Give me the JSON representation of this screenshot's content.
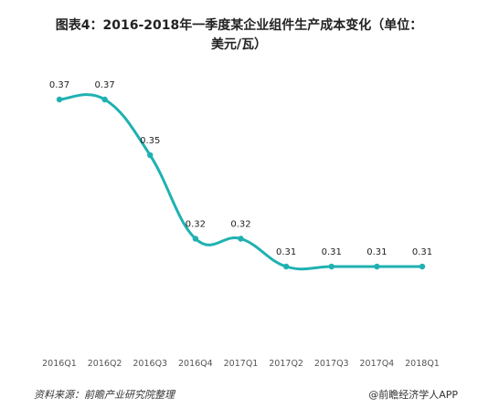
{
  "chart_data": {
    "type": "line",
    "title_line1": "图表4：2016-2018年一季度某企业组件生产成本变化（单位：",
    "title_line2": "美元/瓦）",
    "categories": [
      "2016Q1",
      "2016Q2",
      "2016Q3",
      "2016Q4",
      "2017Q1",
      "2017Q2",
      "2017Q3",
      "2017Q4",
      "2018Q1"
    ],
    "series": [
      {
        "values": [
          0.37,
          0.37,
          0.35,
          0.32,
          0.32,
          0.31,
          0.31,
          0.31,
          0.31
        ],
        "labels": [
          "0.37",
          "0.37",
          "0.35",
          "0.32",
          "0.32",
          "0.31",
          "0.31",
          "0.31",
          "0.31"
        ]
      }
    ],
    "line_color": "#1fb1b1",
    "grid": false,
    "ylim": [
      0.27,
      0.38
    ]
  },
  "footer": {
    "source": "资料来源：前瞻产业研究院整理",
    "credit": "@前瞻经济学人APP"
  }
}
